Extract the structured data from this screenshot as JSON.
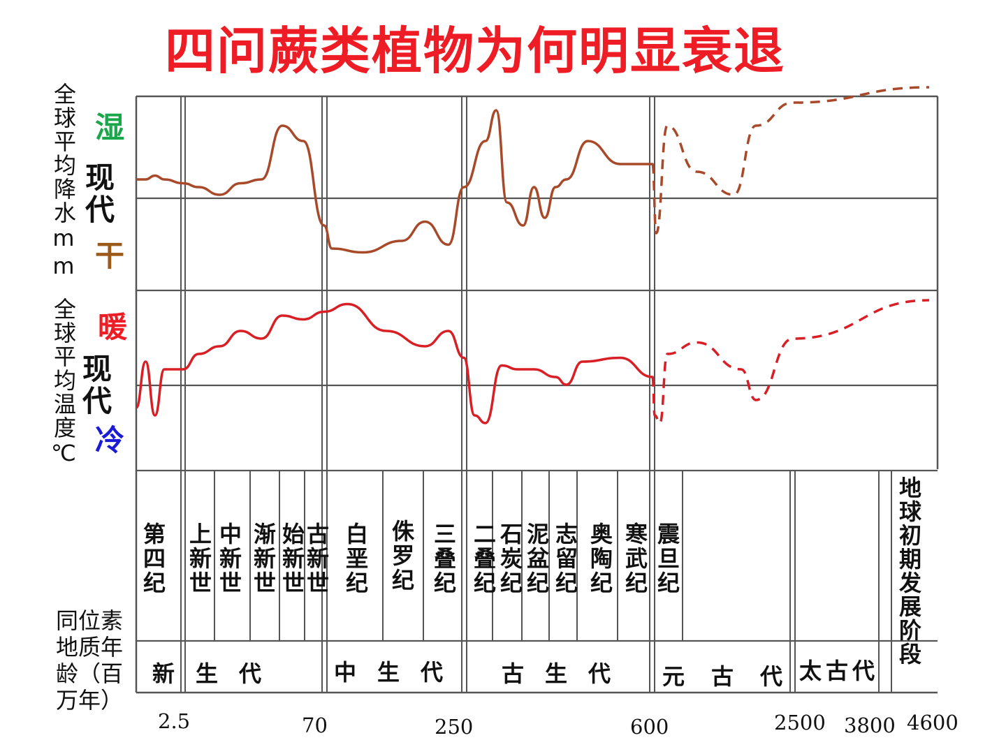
{
  "title": "四问蕨类植物为何明显衰退",
  "axes": {
    "precip_label": "全球平均降水mm",
    "precip_high": "湿",
    "precip_low": "干",
    "precip_present": "现代",
    "temp_label": "全球平均温度℃",
    "temp_high": "暖",
    "temp_low": "冷",
    "temp_present": "现代",
    "age_label": "同位素地质年龄（百万年）",
    "colors": {
      "wet": "#1aa64a",
      "dry": "#9b5a1a",
      "warm": "#ee1c24",
      "cold": "#1b1bd6",
      "precip_line": "#a84a2a",
      "temp_line": "#d81f26"
    }
  },
  "periods": [
    "第四纪",
    "上新世",
    "中新世",
    "渐新世",
    "始新世",
    "古新世",
    "白垩纪",
    "侏罗纪",
    "三叠纪",
    "二叠纪",
    "石炭纪",
    "泥盆纪",
    "志留纪",
    "奥陶纪",
    "寒武纪",
    "震旦纪"
  ],
  "eras": [
    {
      "name": "新生代"
    },
    {
      "name": "中生代"
    },
    {
      "name": "古生代"
    },
    {
      "name": "元古代"
    },
    {
      "name": "太古代"
    },
    {
      "name": "地球初期发展阶段"
    }
  ],
  "ticks": [
    "2.5",
    "70",
    "250",
    "600",
    "2500",
    "3800",
    "4600"
  ],
  "chart_data": {
    "type": "line",
    "title": "四问蕨类植物为何明显衰退",
    "xlabel": "同位素地质年龄（百万年）",
    "x_ticks": [
      "2.5",
      "70",
      "250",
      "600",
      "2500",
      "3800",
      "4600"
    ],
    "series": [
      {
        "name": "全球平均降水mm",
        "note_dashed_after": "600",
        "points": [
          [
            0,
            0.1
          ],
          [
            0.5,
            0.1
          ],
          [
            1,
            0.15
          ],
          [
            1.5,
            0.1
          ],
          [
            2.5,
            0.05
          ],
          [
            10,
            0.0
          ],
          [
            20,
            -0.1
          ],
          [
            30,
            0.05
          ],
          [
            40,
            0.1
          ],
          [
            50,
            0.8
          ],
          [
            60,
            0.6
          ],
          [
            70,
            -0.5
          ],
          [
            80,
            -0.8
          ],
          [
            120,
            -0.85
          ],
          [
            170,
            -0.7
          ],
          [
            200,
            -0.45
          ],
          [
            230,
            -0.75
          ],
          [
            250,
            0.0
          ],
          [
            290,
            0.6
          ],
          [
            310,
            1.0
          ],
          [
            330,
            -0.2
          ],
          [
            360,
            -0.5
          ],
          [
            380,
            0.0
          ],
          [
            400,
            -0.4
          ],
          [
            420,
            0.0
          ],
          [
            440,
            0.1
          ],
          [
            480,
            0.6
          ],
          [
            540,
            0.3
          ],
          [
            600,
            0.3
          ],
          [
            650,
            -0.6
          ],
          [
            800,
            0.8
          ],
          [
            1200,
            0.2
          ],
          [
            1700,
            -0.1
          ],
          [
            2000,
            0.8
          ],
          [
            2500,
            1.1
          ],
          [
            4600,
            1.3
          ]
        ]
      },
      {
        "name": "全球平均温度℃",
        "note_dashed_after": "600",
        "points": [
          [
            0,
            -0.4
          ],
          [
            0.5,
            0.2
          ],
          [
            1,
            -0.5
          ],
          [
            1.5,
            0.1
          ],
          [
            2.5,
            0.1
          ],
          [
            10,
            0.3
          ],
          [
            20,
            0.4
          ],
          [
            30,
            0.6
          ],
          [
            40,
            0.5
          ],
          [
            50,
            0.8
          ],
          [
            60,
            0.75
          ],
          [
            70,
            0.85
          ],
          [
            100,
            0.95
          ],
          [
            150,
            0.6
          ],
          [
            200,
            0.4
          ],
          [
            230,
            0.6
          ],
          [
            250,
            0.25
          ],
          [
            270,
            -0.5
          ],
          [
            290,
            -0.6
          ],
          [
            320,
            0.15
          ],
          [
            350,
            0.1
          ],
          [
            380,
            0.1
          ],
          [
            420,
            0.0
          ],
          [
            440,
            -0.1
          ],
          [
            470,
            0.2
          ],
          [
            540,
            0.25
          ],
          [
            600,
            0.0
          ],
          [
            630,
            -0.5
          ],
          [
            700,
            -0.6
          ],
          [
            800,
            0.3
          ],
          [
            1200,
            0.45
          ],
          [
            1800,
            0.1
          ],
          [
            2000,
            -0.3
          ],
          [
            2500,
            0.5
          ],
          [
            4600,
            1.0
          ]
        ]
      }
    ]
  }
}
